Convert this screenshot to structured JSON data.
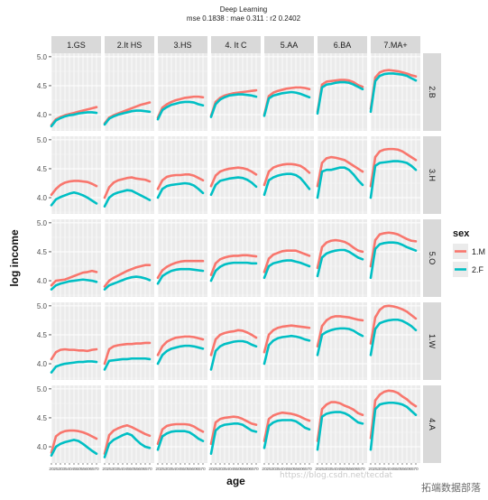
{
  "chart_data": {
    "type": "line",
    "title": "Deep Learning",
    "subtitle": "mse 0.1838 : mae 0.311 : r2 0.2402",
    "xlabel": "age",
    "ylabel": "log income",
    "xlim": [
      20,
      75
    ],
    "ylim": [
      3.72,
      5.06
    ],
    "x_ticks": [
      20,
      25,
      30,
      35,
      40,
      45,
      50,
      55,
      60,
      65,
      70
    ],
    "x_tick_labels": [
      "20",
      "25",
      "30",
      "35",
      "40",
      "45",
      "50",
      "55",
      "60",
      "65",
      "70"
    ],
    "y_ticks": [
      4.0,
      4.5,
      5.0
    ],
    "y_tick_labels": [
      "4.0",
      "4.5",
      "5.0"
    ],
    "grid": true,
    "legend_title": "sex",
    "legend_position": "right",
    "legend": [
      {
        "label": "1.M",
        "color": "#F8766D"
      },
      {
        "label": "2.F",
        "color": "#00BFC4"
      }
    ],
    "columns": [
      "1.GS",
      "2.It HS",
      "3.HS",
      "4. It C",
      "5.AA",
      "6.BA",
      "7.MA+"
    ],
    "rows": [
      "2.B",
      "3.H",
      "5.O",
      "1.W",
      "4.A"
    ],
    "x": [
      20,
      25,
      30,
      35,
      40,
      45,
      50,
      55,
      60,
      65,
      70
    ],
    "series": [
      [
        [
          [
            3.82,
            3.92,
            3.96,
            3.99,
            4.01,
            4.03,
            4.05,
            4.07,
            4.09,
            4.11,
            4.13
          ],
          [
            3.8,
            3.9,
            3.94,
            3.97,
            3.99,
            4.0,
            4.02,
            4.03,
            4.04,
            4.04,
            4.03
          ]
        ],
        [
          [
            3.85,
            3.95,
            3.99,
            4.02,
            4.05,
            4.08,
            4.11,
            4.14,
            4.17,
            4.19,
            4.21
          ],
          [
            3.83,
            3.93,
            3.97,
            4.0,
            4.02,
            4.04,
            4.06,
            4.07,
            4.07,
            4.06,
            4.05
          ]
        ],
        [
          [
            3.95,
            4.12,
            4.18,
            4.22,
            4.25,
            4.27,
            4.29,
            4.3,
            4.31,
            4.31,
            4.3
          ],
          [
            3.92,
            4.08,
            4.13,
            4.17,
            4.19,
            4.21,
            4.22,
            4.22,
            4.21,
            4.18,
            4.16
          ]
        ],
        [
          [
            3.98,
            4.22,
            4.29,
            4.33,
            4.35,
            4.37,
            4.38,
            4.39,
            4.4,
            4.41,
            4.42
          ],
          [
            3.96,
            4.18,
            4.26,
            4.3,
            4.33,
            4.34,
            4.35,
            4.35,
            4.34,
            4.33,
            4.31
          ]
        ],
        [
          [
            4.0,
            4.32,
            4.38,
            4.41,
            4.43,
            4.45,
            4.46,
            4.47,
            4.47,
            4.46,
            4.44
          ],
          [
            3.98,
            4.28,
            4.33,
            4.35,
            4.37,
            4.38,
            4.39,
            4.38,
            4.36,
            4.33,
            4.3
          ]
        ],
        [
          [
            4.05,
            4.52,
            4.57,
            4.58,
            4.59,
            4.6,
            4.6,
            4.59,
            4.56,
            4.51,
            4.48
          ],
          [
            4.02,
            4.47,
            4.52,
            4.53,
            4.55,
            4.56,
            4.56,
            4.55,
            4.52,
            4.48,
            4.44
          ]
        ],
        [
          [
            4.1,
            4.64,
            4.73,
            4.76,
            4.77,
            4.76,
            4.75,
            4.73,
            4.71,
            4.68,
            4.66
          ],
          [
            4.05,
            4.58,
            4.67,
            4.7,
            4.71,
            4.71,
            4.7,
            4.69,
            4.67,
            4.63,
            4.59
          ]
        ]
      ],
      [
        [
          [
            4.05,
            4.15,
            4.22,
            4.26,
            4.28,
            4.29,
            4.29,
            4.28,
            4.27,
            4.24,
            4.2
          ],
          [
            3.87,
            3.97,
            4.01,
            4.04,
            4.07,
            4.09,
            4.07,
            4.04,
            4.0,
            3.95,
            3.9
          ]
        ],
        [
          [
            4.0,
            4.18,
            4.26,
            4.3,
            4.32,
            4.34,
            4.35,
            4.33,
            4.32,
            4.31,
            4.28
          ],
          [
            3.85,
            4.0,
            4.06,
            4.09,
            4.11,
            4.13,
            4.12,
            4.08,
            4.04,
            4.0,
            3.96
          ]
        ],
        [
          [
            4.15,
            4.3,
            4.36,
            4.38,
            4.39,
            4.39,
            4.4,
            4.4,
            4.38,
            4.34,
            4.3
          ],
          [
            4.0,
            4.15,
            4.2,
            4.22,
            4.23,
            4.24,
            4.25,
            4.24,
            4.21,
            4.15,
            4.08
          ]
        ],
        [
          [
            4.2,
            4.38,
            4.45,
            4.48,
            4.5,
            4.51,
            4.52,
            4.51,
            4.49,
            4.45,
            4.4
          ],
          [
            4.05,
            4.22,
            4.29,
            4.31,
            4.33,
            4.34,
            4.35,
            4.34,
            4.31,
            4.26,
            4.19
          ]
        ],
        [
          [
            4.22,
            4.45,
            4.52,
            4.55,
            4.57,
            4.58,
            4.58,
            4.57,
            4.55,
            4.5,
            4.43
          ],
          [
            4.05,
            4.3,
            4.35,
            4.38,
            4.4,
            4.41,
            4.41,
            4.39,
            4.34,
            4.25,
            4.15
          ]
        ],
        [
          [
            4.2,
            4.6,
            4.68,
            4.7,
            4.69,
            4.67,
            4.65,
            4.6,
            4.55,
            4.5,
            4.45
          ],
          [
            4.0,
            4.45,
            4.48,
            4.48,
            4.5,
            4.52,
            4.52,
            4.48,
            4.4,
            4.3,
            4.22
          ]
        ],
        [
          [
            4.2,
            4.7,
            4.8,
            4.83,
            4.84,
            4.84,
            4.83,
            4.8,
            4.75,
            4.7,
            4.65
          ],
          [
            4.0,
            4.55,
            4.6,
            4.61,
            4.62,
            4.63,
            4.63,
            4.62,
            4.6,
            4.55,
            4.48
          ]
        ]
      ],
      [
        [
          [
            3.92,
            4.0,
            4.01,
            4.02,
            4.05,
            4.08,
            4.11,
            4.14,
            4.15,
            4.17,
            4.15
          ],
          [
            3.85,
            3.92,
            3.95,
            3.97,
            3.99,
            4.0,
            4.01,
            4.02,
            4.01,
            4.0,
            3.98
          ]
        ],
        [
          [
            3.9,
            4.0,
            4.05,
            4.09,
            4.13,
            4.17,
            4.2,
            4.23,
            4.25,
            4.27,
            4.27
          ],
          [
            3.85,
            3.92,
            3.95,
            3.98,
            4.01,
            4.04,
            4.06,
            4.07,
            4.06,
            4.04,
            4.01
          ]
        ],
        [
          [
            4.05,
            4.18,
            4.24,
            4.28,
            4.31,
            4.33,
            4.34,
            4.34,
            4.34,
            4.34,
            4.34
          ],
          [
            3.95,
            4.08,
            4.13,
            4.17,
            4.19,
            4.2,
            4.2,
            4.2,
            4.19,
            4.18,
            4.17
          ]
        ],
        [
          [
            4.1,
            4.3,
            4.37,
            4.4,
            4.42,
            4.43,
            4.43,
            4.44,
            4.44,
            4.43,
            4.42
          ],
          [
            4.0,
            4.17,
            4.24,
            4.28,
            4.3,
            4.31,
            4.31,
            4.31,
            4.31,
            4.3,
            4.3
          ]
        ],
        [
          [
            4.15,
            4.38,
            4.45,
            4.48,
            4.51,
            4.52,
            4.52,
            4.52,
            4.49,
            4.46,
            4.43
          ],
          [
            4.05,
            4.25,
            4.3,
            4.32,
            4.34,
            4.35,
            4.35,
            4.33,
            4.31,
            4.28,
            4.25
          ]
        ],
        [
          [
            4.22,
            4.58,
            4.66,
            4.69,
            4.7,
            4.69,
            4.67,
            4.63,
            4.57,
            4.52,
            4.5
          ],
          [
            4.08,
            4.4,
            4.47,
            4.5,
            4.52,
            4.53,
            4.53,
            4.5,
            4.45,
            4.4,
            4.37
          ]
        ],
        [
          [
            4.25,
            4.7,
            4.8,
            4.82,
            4.83,
            4.82,
            4.8,
            4.76,
            4.72,
            4.69,
            4.68
          ],
          [
            4.05,
            4.55,
            4.63,
            4.65,
            4.66,
            4.66,
            4.65,
            4.62,
            4.58,
            4.55,
            4.52
          ]
        ]
      ],
      [
        [
          [
            4.08,
            4.2,
            4.24,
            4.25,
            4.24,
            4.24,
            4.23,
            4.23,
            4.22,
            4.24,
            4.25
          ],
          [
            3.85,
            3.95,
            3.98,
            4.0,
            4.01,
            4.02,
            4.03,
            4.03,
            4.04,
            4.04,
            4.03
          ]
        ],
        [
          [
            4.0,
            4.25,
            4.3,
            4.32,
            4.33,
            4.34,
            4.34,
            4.35,
            4.35,
            4.36,
            4.36
          ],
          [
            3.9,
            4.05,
            4.06,
            4.07,
            4.08,
            4.08,
            4.09,
            4.09,
            4.09,
            4.09,
            4.08
          ]
        ],
        [
          [
            4.15,
            4.3,
            4.38,
            4.42,
            4.45,
            4.46,
            4.47,
            4.47,
            4.46,
            4.44,
            4.42
          ],
          [
            4.0,
            4.15,
            4.22,
            4.26,
            4.28,
            4.3,
            4.31,
            4.31,
            4.3,
            4.28,
            4.26
          ]
        ],
        [
          [
            4.15,
            4.42,
            4.5,
            4.53,
            4.55,
            4.56,
            4.58,
            4.57,
            4.54,
            4.5,
            4.45
          ],
          [
            3.9,
            4.22,
            4.3,
            4.34,
            4.36,
            4.38,
            4.39,
            4.39,
            4.37,
            4.33,
            4.3
          ]
        ],
        [
          [
            4.2,
            4.5,
            4.58,
            4.62,
            4.64,
            4.65,
            4.66,
            4.65,
            4.64,
            4.63,
            4.62
          ],
          [
            4.0,
            4.32,
            4.4,
            4.44,
            4.46,
            4.47,
            4.48,
            4.47,
            4.45,
            4.42,
            4.4
          ]
        ],
        [
          [
            4.3,
            4.65,
            4.75,
            4.8,
            4.82,
            4.82,
            4.81,
            4.8,
            4.78,
            4.76,
            4.75
          ],
          [
            4.15,
            4.5,
            4.55,
            4.58,
            4.6,
            4.61,
            4.61,
            4.6,
            4.57,
            4.52,
            4.48
          ]
        ],
        [
          [
            4.35,
            4.8,
            4.93,
            4.99,
            5.0,
            4.99,
            4.97,
            4.94,
            4.9,
            4.84,
            4.78
          ],
          [
            4.15,
            4.6,
            4.7,
            4.73,
            4.75,
            4.76,
            4.76,
            4.74,
            4.7,
            4.65,
            4.58
          ]
        ]
      ],
      [
        [
          [
            3.9,
            4.18,
            4.24,
            4.27,
            4.28,
            4.28,
            4.27,
            4.25,
            4.22,
            4.18,
            4.14
          ],
          [
            3.85,
            4.0,
            4.05,
            4.08,
            4.1,
            4.12,
            4.1,
            4.05,
            3.99,
            3.93,
            3.88
          ]
        ],
        [
          [
            3.88,
            4.2,
            4.28,
            4.32,
            4.35,
            4.37,
            4.34,
            4.3,
            4.26,
            4.22,
            4.19
          ],
          [
            3.82,
            4.05,
            4.12,
            4.16,
            4.2,
            4.23,
            4.2,
            4.12,
            4.05,
            4.0,
            3.98
          ]
        ],
        [
          [
            4.05,
            4.3,
            4.36,
            4.38,
            4.39,
            4.39,
            4.39,
            4.38,
            4.35,
            4.3,
            4.26
          ],
          [
            3.95,
            4.18,
            4.23,
            4.26,
            4.27,
            4.27,
            4.27,
            4.25,
            4.2,
            4.14,
            4.1
          ]
        ],
        [
          [
            4.05,
            4.42,
            4.48,
            4.5,
            4.51,
            4.52,
            4.51,
            4.48,
            4.44,
            4.4,
            4.38
          ],
          [
            3.88,
            4.28,
            4.35,
            4.38,
            4.39,
            4.4,
            4.4,
            4.38,
            4.33,
            4.28,
            4.26
          ]
        ],
        [
          [
            4.1,
            4.48,
            4.54,
            4.57,
            4.59,
            4.58,
            4.57,
            4.55,
            4.52,
            4.48,
            4.45
          ],
          [
            3.98,
            4.36,
            4.42,
            4.45,
            4.46,
            4.46,
            4.46,
            4.44,
            4.39,
            4.33,
            4.3
          ]
        ],
        [
          [
            4.1,
            4.65,
            4.73,
            4.77,
            4.77,
            4.75,
            4.71,
            4.68,
            4.64,
            4.58,
            4.55
          ],
          [
            3.95,
            4.52,
            4.57,
            4.59,
            4.6,
            4.6,
            4.58,
            4.54,
            4.48,
            4.42,
            4.4
          ]
        ],
        [
          [
            4.15,
            4.8,
            4.9,
            4.95,
            4.97,
            4.96,
            4.93,
            4.87,
            4.82,
            4.75,
            4.7
          ],
          [
            3.95,
            4.65,
            4.73,
            4.75,
            4.76,
            4.76,
            4.75,
            4.73,
            4.69,
            4.62,
            4.55
          ]
        ]
      ]
    ]
  },
  "watermark": {
    "url": "https://blog.csdn.net/tecdat",
    "label": "拓端数据部落"
  }
}
